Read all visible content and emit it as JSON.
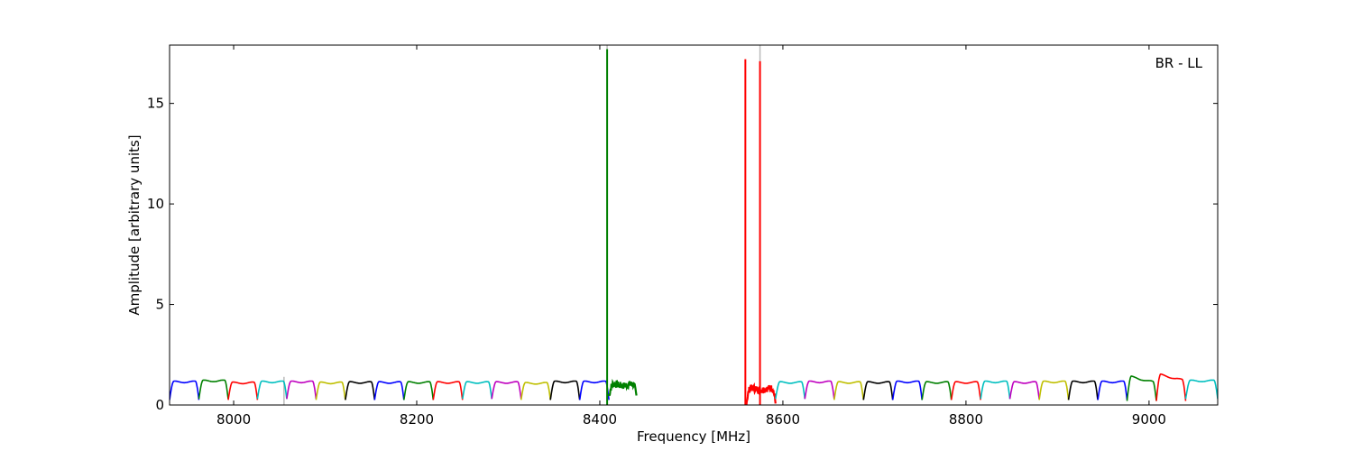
{
  "chart_data": {
    "type": "line",
    "title": "",
    "xlabel": "Frequency [MHz]",
    "ylabel": "Amplitude [arbitrary units]",
    "annotation": "BR - LL",
    "annotation_position": "top-right",
    "xlim": [
      7930,
      9075
    ],
    "ylim": [
      0,
      17.9
    ],
    "xticks": [
      8000,
      8200,
      8400,
      8600,
      8800,
      9000
    ],
    "yticks": [
      0,
      5,
      10,
      15
    ],
    "grid": false,
    "legend": "none",
    "subband_width_mhz": 32,
    "series": [
      {
        "x_start": 7930,
        "x_end": 7962,
        "color": "#0000ff",
        "level": 1.15,
        "dip": 0.25
      },
      {
        "x_start": 7962,
        "x_end": 7994,
        "color": "#008000",
        "level": 1.2,
        "dip": 0.3
      },
      {
        "x_start": 7994,
        "x_end": 8026,
        "color": "#ff0000",
        "level": 1.1,
        "dip": 0.25
      },
      {
        "x_start": 8026,
        "x_end": 8058,
        "color": "#00bfbf",
        "level": 1.15,
        "dip": 0.3
      },
      {
        "x_start": 8058,
        "x_end": 8090,
        "color": "#bf00bf",
        "level": 1.15,
        "dip": 0.3
      },
      {
        "x_start": 8090,
        "x_end": 8122,
        "color": "#bfbf00",
        "level": 1.1,
        "dip": 0.25
      },
      {
        "x_start": 8122,
        "x_end": 8154,
        "color": "#000000",
        "level": 1.12,
        "dip": 0.25
      },
      {
        "x_start": 8154,
        "x_end": 8186,
        "color": "#0000ff",
        "level": 1.12,
        "dip": 0.25
      },
      {
        "x_start": 8186,
        "x_end": 8218,
        "color": "#008000",
        "level": 1.12,
        "dip": 0.25
      },
      {
        "x_start": 8218,
        "x_end": 8250,
        "color": "#ff0000",
        "level": 1.12,
        "dip": 0.25
      },
      {
        "x_start": 8250,
        "x_end": 8282,
        "color": "#00bfbf",
        "level": 1.12,
        "dip": 0.3
      },
      {
        "x_start": 8282,
        "x_end": 8314,
        "color": "#bf00bf",
        "level": 1.12,
        "dip": 0.3
      },
      {
        "x_start": 8314,
        "x_end": 8346,
        "color": "#bfbf00",
        "level": 1.08,
        "dip": 0.25
      },
      {
        "x_start": 8346,
        "x_end": 8378,
        "color": "#000000",
        "level": 1.15,
        "dip": 0.25
      },
      {
        "x_start": 8378,
        "x_end": 8410,
        "color": "#0000ff",
        "level": 1.15,
        "dip": 0.25
      },
      {
        "x_start": 8410,
        "x_end": 8440,
        "color": "#008000",
        "level": 1.0,
        "dip": 0.45,
        "noisy": true
      },
      {
        "x_start": 8560,
        "x_end": 8592,
        "color": "#ff0000",
        "level": 0.8,
        "dip": 0.1,
        "noisy": true
      },
      {
        "x_start": 8592,
        "x_end": 8624,
        "color": "#00bfbf",
        "level": 1.12,
        "dip": 0.3
      },
      {
        "x_start": 8624,
        "x_end": 8656,
        "color": "#bf00bf",
        "level": 1.15,
        "dip": 0.3
      },
      {
        "x_start": 8656,
        "x_end": 8688,
        "color": "#bfbf00",
        "level": 1.12,
        "dip": 0.25
      },
      {
        "x_start": 8688,
        "x_end": 8720,
        "color": "#000000",
        "level": 1.12,
        "dip": 0.25
      },
      {
        "x_start": 8720,
        "x_end": 8752,
        "color": "#0000ff",
        "level": 1.15,
        "dip": 0.25
      },
      {
        "x_start": 8752,
        "x_end": 8784,
        "color": "#008000",
        "level": 1.12,
        "dip": 0.25
      },
      {
        "x_start": 8784,
        "x_end": 8816,
        "color": "#ff0000",
        "level": 1.12,
        "dip": 0.25
      },
      {
        "x_start": 8816,
        "x_end": 8848,
        "color": "#00bfbf",
        "level": 1.15,
        "dip": 0.3
      },
      {
        "x_start": 8848,
        "x_end": 8880,
        "color": "#bf00bf",
        "level": 1.12,
        "dip": 0.3
      },
      {
        "x_start": 8880,
        "x_end": 8912,
        "color": "#bfbf00",
        "level": 1.15,
        "dip": 0.25
      },
      {
        "x_start": 8912,
        "x_end": 8944,
        "color": "#000000",
        "level": 1.15,
        "dip": 0.25
      },
      {
        "x_start": 8944,
        "x_end": 8976,
        "color": "#0000ff",
        "level": 1.15,
        "dip": 0.25
      },
      {
        "x_start": 8976,
        "x_end": 9008,
        "color": "#008000",
        "level": 1.2,
        "dip": 0.3,
        "slope": "down"
      },
      {
        "x_start": 9008,
        "x_end": 9040,
        "color": "#ff0000",
        "level": 1.3,
        "dip": 0.3,
        "slope": "down"
      },
      {
        "x_start": 9040,
        "x_end": 9075,
        "color": "#00bfbf",
        "level": 1.2,
        "dip": 0.3
      }
    ],
    "spikes": [
      {
        "x": 8408,
        "y": 17.7,
        "color": "#008000"
      },
      {
        "x": 8559,
        "y": 17.2,
        "color": "#ff0000"
      },
      {
        "x": 8575,
        "y": 17.1,
        "color": "#ff0000"
      }
    ],
    "gray_spikes": [
      {
        "x": 8055,
        "y": 1.4
      },
      {
        "x": 8408,
        "y": 17.9
      },
      {
        "x": 8575,
        "y": 17.9
      }
    ]
  }
}
